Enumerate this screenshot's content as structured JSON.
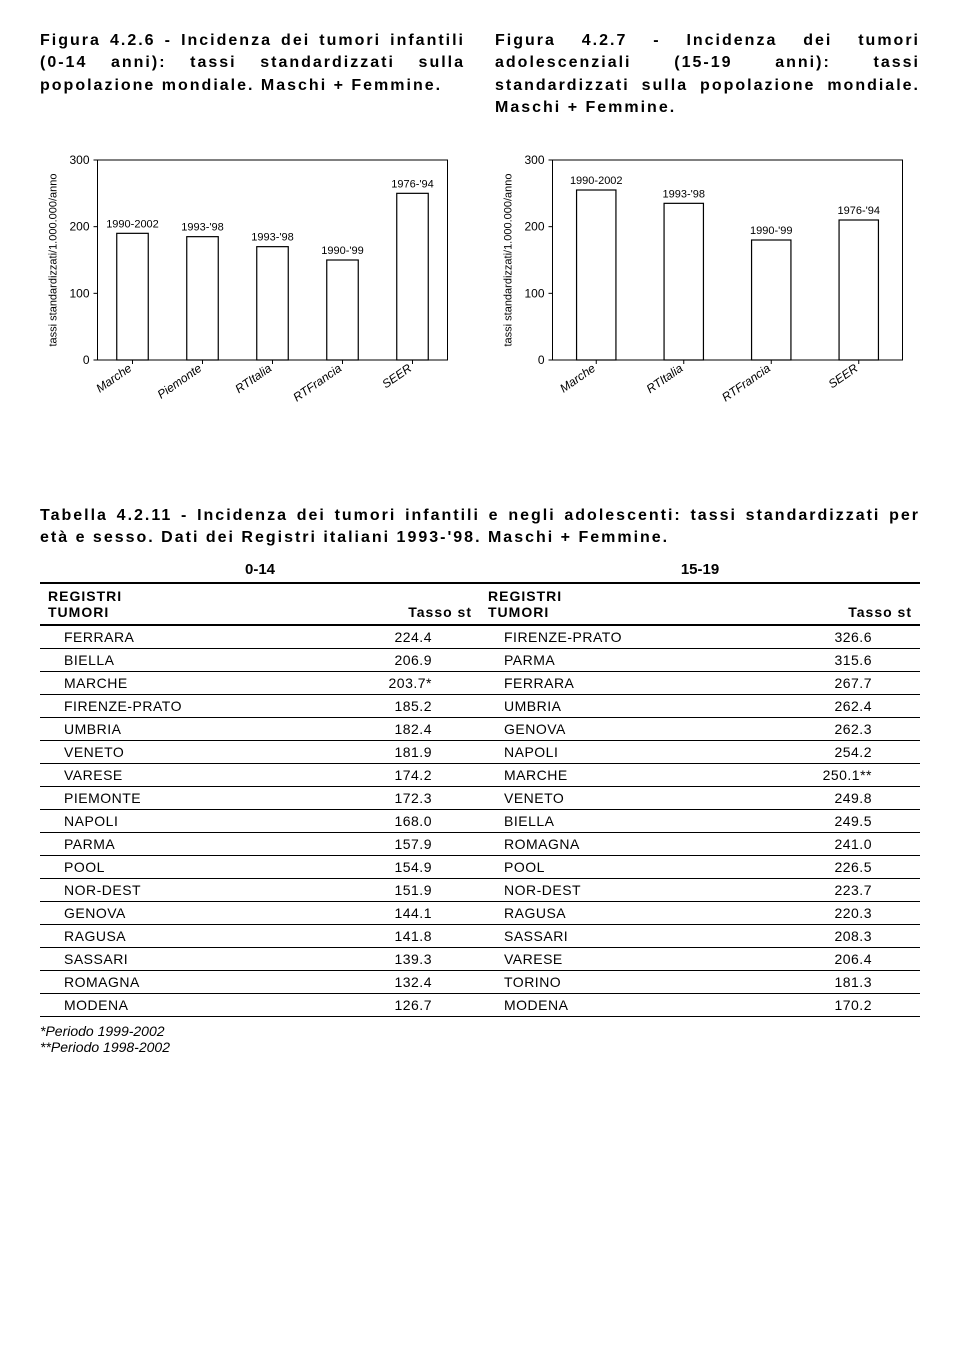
{
  "fig426": {
    "title": "Figura 4.2.6 - Incidenza dei tumori infantili (0-14 anni): tassi standardizzati sulla popolazione mondiale. Maschi + Femmine.",
    "type": "bar",
    "ylabel": "tassi standardizzati/1.000.000/anno",
    "ylim": [
      0,
      300
    ],
    "ytick_step": 100,
    "categories": [
      "Marche",
      "Piemonte",
      "RTItalia",
      "RTFrancia",
      "SEER"
    ],
    "values": [
      190,
      185,
      170,
      150,
      250
    ],
    "bar_labels": [
      "1990-2002",
      "1993-'98",
      "1993-'98",
      "1990-'99",
      "1976-'94"
    ],
    "bar_fill": "#ffffff",
    "bar_stroke": "#000000",
    "background_color": "#ffffff",
    "axis_color": "#000000",
    "label_fontsize": 11,
    "tick_fontsize": 12,
    "bar_width": 0.45
  },
  "fig427": {
    "title": "Figura 4.2.7 - Incidenza dei tumori adolescenziali (15-19 anni): tassi standardizzati sulla popolazione mondiale. Maschi + Femmine.",
    "type": "bar",
    "ylabel": "tassi standardizzati/1.000.000/anno",
    "ylim": [
      0,
      300
    ],
    "ytick_step": 100,
    "categories": [
      "Marche",
      "RTItalia",
      "RTFrancia",
      "SEER"
    ],
    "values": [
      255,
      235,
      180,
      210
    ],
    "bar_labels": [
      "1990-2002",
      "1993-'98",
      "1990-'99",
      "1976-'94"
    ],
    "bar_fill": "#ffffff",
    "bar_stroke": "#000000",
    "background_color": "#ffffff",
    "axis_color": "#000000",
    "label_fontsize": 11,
    "tick_fontsize": 12,
    "bar_width": 0.45
  },
  "table": {
    "title": "Tabella 4.2.11 - Incidenza dei tumori infantili e negli adolescenti: tassi standardizzati per età e sesso. Dati dei Registri italiani 1993-'98. Maschi + Femmine.",
    "age_headers": [
      "0-14",
      "15-19"
    ],
    "col_header_top": "REGISTRI",
    "col_header_left": "TUMORI",
    "col_header_right": "Tasso st",
    "left": [
      {
        "name": "FERRARA",
        "val": "224.4"
      },
      {
        "name": "BIELLA",
        "val": "206.9"
      },
      {
        "name": "MARCHE",
        "val": "203.7*"
      },
      {
        "name": "FIRENZE-PRATO",
        "val": "185.2"
      },
      {
        "name": "UMBRIA",
        "val": "182.4"
      },
      {
        "name": "VENETO",
        "val": "181.9"
      },
      {
        "name": "VARESE",
        "val": "174.2"
      },
      {
        "name": "PIEMONTE",
        "val": "172.3"
      },
      {
        "name": "NAPOLI",
        "val": "168.0"
      },
      {
        "name": "PARMA",
        "val": "157.9"
      },
      {
        "name": "POOL",
        "val": "154.9"
      },
      {
        "name": "NOR-DEST",
        "val": "151.9"
      },
      {
        "name": "GENOVA",
        "val": "144.1"
      },
      {
        "name": "RAGUSA",
        "val": "141.8"
      },
      {
        "name": "SASSARI",
        "val": "139.3"
      },
      {
        "name": "ROMAGNA",
        "val": "132.4"
      },
      {
        "name": "MODENA",
        "val": "126.7"
      }
    ],
    "right": [
      {
        "name": "FIRENZE-PRATO",
        "val": "326.6"
      },
      {
        "name": "PARMA",
        "val": "315.6"
      },
      {
        "name": "FERRARA",
        "val": "267.7"
      },
      {
        "name": "UMBRIA",
        "val": "262.4"
      },
      {
        "name": "GENOVA",
        "val": "262.3"
      },
      {
        "name": "NAPOLI",
        "val": "254.2"
      },
      {
        "name": "MARCHE",
        "val": "250.1**"
      },
      {
        "name": "VENETO",
        "val": "249.8"
      },
      {
        "name": "BIELLA",
        "val": "249.5"
      },
      {
        "name": "ROMAGNA",
        "val": "241.0"
      },
      {
        "name": "POOL",
        "val": "226.5"
      },
      {
        "name": "NOR-DEST",
        "val": "223.7"
      },
      {
        "name": "RAGUSA",
        "val": "220.3"
      },
      {
        "name": "SASSARI",
        "val": "208.3"
      },
      {
        "name": "VARESE",
        "val": "206.4"
      },
      {
        "name": "TORINO",
        "val": "181.3"
      },
      {
        "name": "MODENA",
        "val": "170.2"
      }
    ],
    "footnotes": [
      "*Periodo 1999-2002",
      "**Periodo 1998-2002"
    ]
  }
}
